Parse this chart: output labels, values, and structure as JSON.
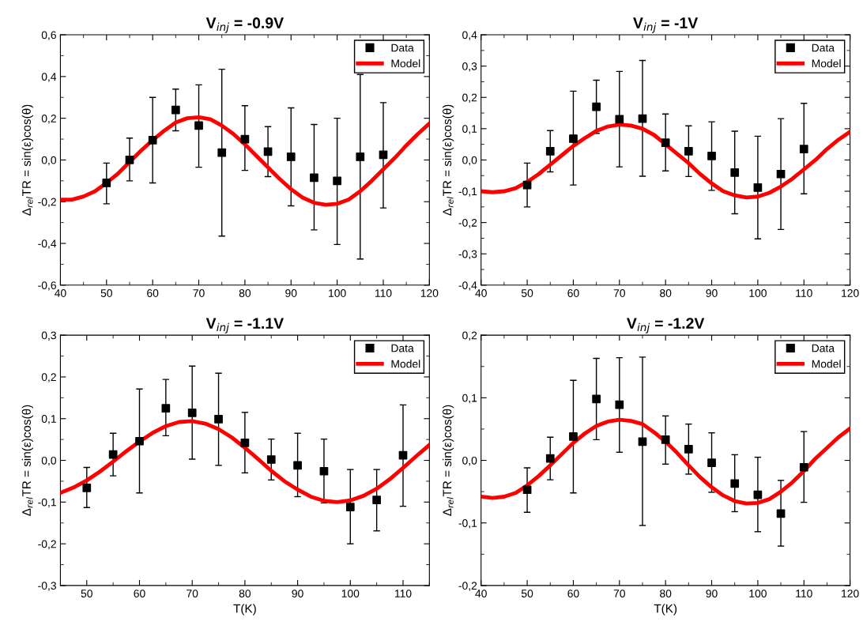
{
  "chart_data": [
    {
      "type": "scatter",
      "title": "V$_{inj}$ = -0.9V",
      "ylabel": "Δ$_{rel}$TR = sin(ε)cos(θ)",
      "legend": "top right",
      "xlim": [
        40,
        120
      ],
      "xticks": [
        40,
        50,
        60,
        70,
        80,
        90,
        100,
        110,
        120
      ],
      "ylim": [
        -0.6,
        0.6
      ],
      "yticks": [
        {
          "value": -0.6,
          "label": "-0,6"
        },
        {
          "value": -0.4,
          "label": "-0,4"
        },
        {
          "value": -0.2,
          "label": "-0,2"
        },
        {
          "value": 0,
          "label": "0,0"
        },
        {
          "value": 0.2,
          "label": "0,2"
        },
        {
          "value": 0.4,
          "label": "0,4"
        },
        {
          "value": 0.6,
          "label": "0,6"
        }
      ],
      "series": [
        {
          "name": "Data",
          "marker": "square",
          "color": "#000000",
          "x": [
            50,
            55,
            60,
            65,
            70,
            75,
            80,
            85,
            90,
            95,
            100,
            105,
            110
          ],
          "values": [
            -0.11,
            0.0,
            0.095,
            0.24,
            0.165,
            0.035,
            0.1,
            0.04,
            0.015,
            -0.085,
            -0.1,
            0.015,
            0.025
          ],
          "errors": [
            [
              -0.21,
              -0.015
            ],
            [
              -0.1,
              0.105
            ],
            [
              -0.11,
              0.3
            ],
            [
              0.14,
              0.34
            ],
            [
              -0.035,
              0.36
            ],
            [
              -0.365,
              0.435
            ],
            [
              -0.05,
              0.26
            ],
            [
              -0.08,
              0.16
            ],
            [
              -0.22,
              0.25
            ],
            [
              -0.335,
              0.17
            ],
            [
              -0.405,
              0.2
            ],
            [
              -0.475,
              0.41
            ],
            [
              -0.23,
              0.275
            ]
          ]
        },
        {
          "name": "Model",
          "type": "line",
          "color": "#ff0000",
          "x": [
            40,
            42.5,
            45,
            47.5,
            50,
            52.5,
            55,
            57.5,
            60,
            62.5,
            65,
            67.5,
            70,
            72.5,
            75,
            77.5,
            80,
            82.5,
            85,
            87.5,
            90,
            92.5,
            95,
            97.5,
            100,
            102.5,
            105,
            107.5,
            110,
            112.5,
            115,
            117.5,
            120
          ],
          "values": [
            -0.19,
            -0.19,
            -0.175,
            -0.15,
            -0.11,
            -0.065,
            -0.01,
            0.045,
            0.095,
            0.14,
            0.18,
            0.2,
            0.205,
            0.195,
            0.165,
            0.125,
            0.075,
            0.02,
            -0.035,
            -0.09,
            -0.14,
            -0.18,
            -0.205,
            -0.215,
            -0.21,
            -0.19,
            -0.15,
            -0.1,
            -0.045,
            0.01,
            0.07,
            0.125,
            0.175
          ]
        }
      ]
    },
    {
      "type": "scatter",
      "title": "V$_{inj}$ = -1V",
      "ylabel": "Δ$_{rel}$TR = sin(ε)cos(θ)",
      "legend": "top right",
      "xlim": [
        40,
        120
      ],
      "xticks": [
        40,
        50,
        60,
        70,
        80,
        90,
        100,
        110,
        120
      ],
      "ylim": [
        -0.4,
        0.4
      ],
      "yticks": [
        {
          "value": -0.4,
          "label": "-0,4"
        },
        {
          "value": -0.3,
          "label": "-0,3"
        },
        {
          "value": -0.2,
          "label": "-0,2"
        },
        {
          "value": -0.1,
          "label": "-0,1"
        },
        {
          "value": 0,
          "label": "0,0"
        },
        {
          "value": 0.1,
          "label": "0,1"
        },
        {
          "value": 0.2,
          "label": "0,2"
        },
        {
          "value": 0.3,
          "label": "0,3"
        },
        {
          "value": 0.4,
          "label": "0,4"
        }
      ],
      "series": [
        {
          "name": "Data",
          "marker": "square",
          "color": "#000000",
          "x": [
            50,
            55,
            60,
            65,
            70,
            75,
            80,
            85,
            90,
            95,
            100,
            105,
            110
          ],
          "values": [
            -0.08,
            0.028,
            0.068,
            0.17,
            0.13,
            0.132,
            0.055,
            0.028,
            0.013,
            -0.04,
            -0.088,
            -0.045,
            0.035
          ],
          "errors": [
            [
              -0.15,
              -0.01
            ],
            [
              -0.038,
              0.094
            ],
            [
              -0.08,
              0.22
            ],
            [
              0.085,
              0.255
            ],
            [
              -0.022,
              0.283
            ],
            [
              -0.052,
              0.318
            ],
            [
              -0.035,
              0.147
            ],
            [
              -0.053,
              0.109
            ],
            [
              -0.097,
              0.122
            ],
            [
              -0.172,
              0.092
            ],
            [
              -0.252,
              0.076
            ],
            [
              -0.222,
              0.132
            ],
            [
              -0.108,
              0.181
            ]
          ]
        },
        {
          "name": "Model",
          "type": "line",
          "color": "#ff0000",
          "x": [
            40,
            42.5,
            45,
            47.5,
            50,
            52.5,
            55,
            57.5,
            60,
            62.5,
            65,
            67.5,
            70,
            72.5,
            75,
            77.5,
            80,
            82.5,
            85,
            87.5,
            90,
            92.5,
            95,
            97.5,
            100,
            102.5,
            105,
            107.5,
            110,
            112.5,
            115,
            117.5,
            120
          ],
          "values": [
            -0.1,
            -0.103,
            -0.1,
            -0.09,
            -0.07,
            -0.045,
            -0.015,
            0.015,
            0.045,
            0.07,
            0.093,
            0.107,
            0.113,
            0.11,
            0.1,
            0.08,
            0.05,
            0.02,
            -0.01,
            -0.045,
            -0.075,
            -0.1,
            -0.113,
            -0.12,
            -0.117,
            -0.105,
            -0.085,
            -0.06,
            -0.03,
            0.0,
            0.035,
            0.065,
            0.09
          ]
        }
      ]
    },
    {
      "type": "scatter",
      "title": "V$_{inj}$ = -1.1V",
      "xlabel": "T(K)",
      "ylabel": "Δ$_{rel}$TR = sin(ε)cos(θ)",
      "legend": "top right",
      "xlim": [
        45,
        115
      ],
      "xticks": [
        50,
        60,
        70,
        80,
        90,
        100,
        110
      ],
      "ylim": [
        -0.3,
        0.3
      ],
      "yticks": [
        {
          "value": -0.3,
          "label": "-0,3"
        },
        {
          "value": -0.2,
          "label": "-0,2"
        },
        {
          "value": -0.1,
          "label": "-0,1"
        },
        {
          "value": 0,
          "label": "0,0"
        },
        {
          "value": 0.1,
          "label": "0,1"
        },
        {
          "value": 0.2,
          "label": "0,2"
        },
        {
          "value": 0.3,
          "label": "0,3"
        }
      ],
      "series": [
        {
          "name": "Data",
          "marker": "square",
          "color": "#000000",
          "x": [
            50,
            55,
            60,
            65,
            70,
            75,
            80,
            85,
            90,
            95,
            100,
            105,
            110
          ],
          "values": [
            -0.066,
            0.014,
            0.046,
            0.125,
            0.114,
            0.099,
            0.042,
            0.002,
            -0.012,
            -0.026,
            -0.112,
            -0.095,
            0.012
          ],
          "errors": [
            [
              -0.113,
              -0.017
            ],
            [
              -0.037,
              0.065
            ],
            [
              -0.078,
              0.171
            ],
            [
              0.059,
              0.194
            ],
            [
              0.003,
              0.226
            ],
            [
              -0.012,
              0.209
            ],
            [
              -0.03,
              0.115
            ],
            [
              -0.047,
              0.051
            ],
            [
              -0.087,
              0.065
            ],
            [
              -0.102,
              0.051
            ],
            [
              -0.2,
              -0.022
            ],
            [
              -0.169,
              -0.022
            ],
            [
              -0.11,
              0.133
            ]
          ]
        },
        {
          "name": "Model",
          "type": "line",
          "color": "#ff0000",
          "x": [
            45,
            47.5,
            50,
            52.5,
            55,
            57.5,
            60,
            62.5,
            65,
            67.5,
            70,
            72.5,
            75,
            77.5,
            80,
            82.5,
            85,
            87.5,
            90,
            92.5,
            95,
            97.5,
            100,
            102.5,
            105,
            107.5,
            110,
            112.5,
            115
          ],
          "values": [
            -0.078,
            -0.065,
            -0.048,
            -0.027,
            -0.003,
            0.022,
            0.045,
            0.066,
            0.082,
            0.092,
            0.094,
            0.088,
            0.075,
            0.055,
            0.03,
            0.003,
            -0.025,
            -0.05,
            -0.07,
            -0.087,
            -0.097,
            -0.1,
            -0.096,
            -0.085,
            -0.068,
            -0.045,
            -0.018,
            0.01,
            0.037
          ]
        }
      ]
    },
    {
      "type": "scatter",
      "title": "V$_{inj}$ = -1.2V",
      "xlabel": "T(K)",
      "ylabel": "Δ$_{rel}$TR = sin(ε)cos(θ)",
      "legend": "top right",
      "xlim": [
        40,
        120
      ],
      "xticks": [
        40,
        50,
        60,
        70,
        80,
        90,
        100,
        110,
        120
      ],
      "ylim": [
        -0.2,
        0.2
      ],
      "yticks": [
        {
          "value": -0.2,
          "label": "-0,2"
        },
        {
          "value": -0.1,
          "label": "-0,1"
        },
        {
          "value": 0,
          "label": "0,0"
        },
        {
          "value": 0.1,
          "label": "0,1"
        },
        {
          "value": 0.2,
          "label": "0,2"
        }
      ],
      "series": [
        {
          "name": "Data",
          "marker": "square",
          "color": "#000000",
          "x": [
            50,
            55,
            60,
            65,
            70,
            75,
            80,
            85,
            90,
            95,
            100,
            105,
            110
          ],
          "values": [
            -0.047,
            0.003,
            0.038,
            0.098,
            0.089,
            0.03,
            0.033,
            0.018,
            -0.004,
            -0.037,
            -0.055,
            -0.085,
            -0.011
          ],
          "errors": [
            [
              -0.083,
              -0.012
            ],
            [
              -0.031,
              0.037
            ],
            [
              -0.052,
              0.128
            ],
            [
              0.033,
              0.163
            ],
            [
              0.013,
              0.164
            ],
            [
              -0.104,
              0.165
            ],
            [
              -0.006,
              0.071
            ],
            [
              -0.022,
              0.058
            ],
            [
              -0.051,
              0.044
            ],
            [
              -0.082,
              0.009
            ],
            [
              -0.114,
              0.005
            ],
            [
              -0.137,
              -0.032
            ],
            [
              -0.067,
              0.046
            ]
          ]
        },
        {
          "name": "Model",
          "type": "line",
          "color": "#ff0000",
          "x": [
            40,
            42.5,
            45,
            47.5,
            50,
            52.5,
            55,
            57.5,
            60,
            62.5,
            65,
            67.5,
            70,
            72.5,
            75,
            77.5,
            80,
            82.5,
            85,
            87.5,
            90,
            92.5,
            95,
            97.5,
            100,
            102.5,
            105,
            107.5,
            110,
            112.5,
            115,
            117.5,
            120
          ],
          "values": [
            -0.058,
            -0.06,
            -0.058,
            -0.052,
            -0.04,
            -0.025,
            -0.008,
            0.01,
            0.028,
            0.043,
            0.055,
            0.062,
            0.065,
            0.063,
            0.058,
            0.045,
            0.03,
            0.012,
            -0.008,
            -0.027,
            -0.043,
            -0.056,
            -0.065,
            -0.069,
            -0.068,
            -0.062,
            -0.05,
            -0.035,
            -0.017,
            0.003,
            0.02,
            0.037,
            0.051
          ]
        }
      ]
    }
  ]
}
